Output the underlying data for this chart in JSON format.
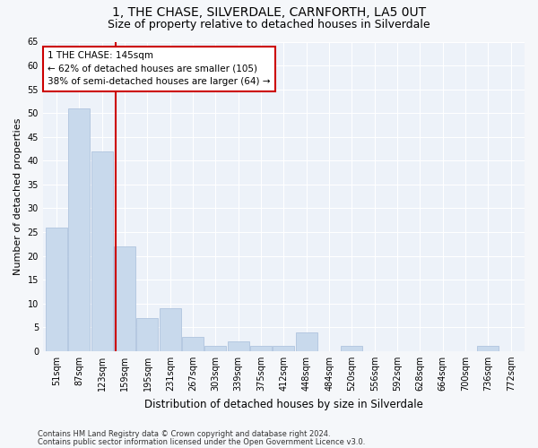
{
  "title": "1, THE CHASE, SILVERDALE, CARNFORTH, LA5 0UT",
  "subtitle": "Size of property relative to detached houses in Silverdale",
  "xlabel": "Distribution of detached houses by size in Silverdale",
  "ylabel": "Number of detached properties",
  "bar_color": "#c8d9ec",
  "bar_edge_color": "#b0c4de",
  "background_color": "#edf2f9",
  "grid_color": "#ffffff",
  "fig_background": "#f5f7fa",
  "bins": [
    "51sqm",
    "87sqm",
    "123sqm",
    "159sqm",
    "195sqm",
    "231sqm",
    "267sqm",
    "303sqm",
    "339sqm",
    "375sqm",
    "412sqm",
    "448sqm",
    "484sqm",
    "520sqm",
    "556sqm",
    "592sqm",
    "628sqm",
    "664sqm",
    "700sqm",
    "736sqm",
    "772sqm"
  ],
  "values": [
    26,
    51,
    42,
    22,
    7,
    9,
    3,
    1,
    2,
    1,
    1,
    4,
    0,
    1,
    0,
    0,
    0,
    0,
    0,
    1,
    0
  ],
  "ylim": [
    0,
    65
  ],
  "yticks": [
    0,
    5,
    10,
    15,
    20,
    25,
    30,
    35,
    40,
    45,
    50,
    55,
    60,
    65
  ],
  "vline_x": 2.62,
  "vline_color": "#cc0000",
  "annotation_text": "1 THE CHASE: 145sqm\n← 62% of detached houses are smaller (105)\n38% of semi-detached houses are larger (64) →",
  "annotation_box_color": "#ffffff",
  "annotation_box_edge": "#cc0000",
  "footer_line1": "Contains HM Land Registry data © Crown copyright and database right 2024.",
  "footer_line2": "Contains public sector information licensed under the Open Government Licence v3.0.",
  "title_fontsize": 10,
  "subtitle_fontsize": 9,
  "tick_fontsize": 7,
  "ylabel_fontsize": 8,
  "xlabel_fontsize": 8.5,
  "annotation_fontsize": 7.5,
  "footer_fontsize": 6
}
